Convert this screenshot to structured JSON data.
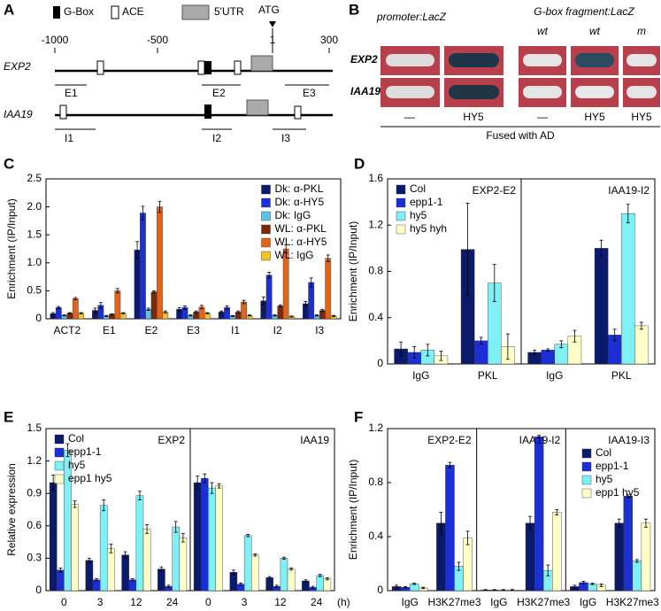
{
  "panel_labels": [
    "A",
    "B",
    "C",
    "D",
    "E",
    "F"
  ],
  "panel_a": {
    "legend": [
      "G-Box",
      "ACE",
      "5'UTR",
      "ATG"
    ],
    "scale": [
      "-1000",
      "-500",
      "1",
      "300"
    ],
    "genes": [
      {
        "name": "EXP2",
        "fragments": [
          "E1",
          "E2",
          "E3"
        ]
      },
      {
        "name": "IAA19",
        "fragments": [
          "I1",
          "I2",
          "I3"
        ]
      }
    ]
  },
  "panel_b": {
    "groups": [
      "promoter:LacZ",
      "G-box fragment:LacZ"
    ],
    "columns": [
      "wt",
      "wt",
      "m"
    ],
    "rows": [
      "EXP2",
      "IAA19"
    ],
    "effectors": [
      "—",
      "HY5",
      "—",
      "HY5",
      "HY5"
    ],
    "footer": "Fused with AD"
  },
  "chart_data": [
    {
      "type": "bar",
      "y_label": "Enrichment (IP/Input)",
      "legend": "upper right",
      "categories": [
        "ACT2",
        "E1",
        "E2",
        "E3",
        "I1",
        "I2",
        "I3"
      ],
      "ylim": [
        0,
        2.5
      ],
      "yticks": [
        0,
        0.5,
        {
          "value": 1,
          "label": "1.0"
        },
        1.5,
        {
          "value": 2,
          "label": "2.0"
        },
        2.5
      ],
      "series": [
        {
          "name": "Dk: α-PKL",
          "color": "#0b1a6b",
          "values": [
            0.09,
            0.15,
            1.23,
            0.17,
            0.12,
            0.32,
            0.27
          ],
          "errors": [
            0.02,
            0.04,
            0.15,
            0.03,
            0.02,
            0.07,
            0.04
          ]
        },
        {
          "name": "Dk: α-HY5",
          "color": "#1c2fd6",
          "values": [
            0.2,
            0.24,
            1.89,
            0.2,
            0.2,
            0.78,
            0.65
          ],
          "errors": [
            0.02,
            0.05,
            0.12,
            0.03,
            0.03,
            0.05,
            0.08
          ]
        },
        {
          "name": "Dk: IgG",
          "color": "#5cc0e8",
          "values": [
            0.06,
            0.05,
            0.17,
            0.06,
            0.05,
            0.06,
            0.06
          ],
          "errors": [
            0.01,
            0.01,
            0.02,
            0.01,
            0.01,
            0.01,
            0.01
          ]
        },
        {
          "name": "WL: α-PKL",
          "color": "#7a2a0c",
          "values": [
            0.1,
            0.08,
            0.48,
            0.12,
            0.12,
            0.23,
            0.15
          ],
          "errors": [
            0.01,
            0.01,
            0.02,
            0.02,
            0.02,
            0.02,
            0.02
          ]
        },
        {
          "name": "WL: α-HY5",
          "color": "#e0651a",
          "values": [
            0.36,
            0.5,
            2.0,
            0.21,
            0.3,
            1.25,
            1.08
          ],
          "errors": [
            0.02,
            0.04,
            0.1,
            0.03,
            0.03,
            0.07,
            0.06
          ]
        },
        {
          "name": "WL: IgG",
          "color": "#f2c22e",
          "values": [
            0.1,
            0.1,
            0.12,
            0.1,
            0.06,
            0.04,
            0.05
          ],
          "errors": [
            0.01,
            0.01,
            0.02,
            0.01,
            0.01,
            0.01,
            0.01
          ]
        }
      ]
    },
    {
      "type": "bar",
      "y_label": "Enrichment (IP/Input)",
      "legend": "upper left",
      "categories": [
        "IgG",
        "PKL",
        "IgG",
        "PKL"
      ],
      "group_labels": [
        "EXP2-E2",
        "IAA19-I2"
      ],
      "ylim": [
        0,
        1.6
      ],
      "yticks": [
        0,
        0.4,
        0.8,
        1.2,
        1.6
      ],
      "series": [
        {
          "name": "Col",
          "color": "#0b1a6b",
          "values": [
            0.13,
            0.99,
            0.1,
            1.0
          ],
          "errors": [
            0.06,
            0.4,
            0.02,
            0.07
          ]
        },
        {
          "name": "epp1-1",
          "color": "#1c2fd6",
          "values": [
            0.1,
            0.2,
            0.12,
            0.25
          ],
          "errors": [
            0.05,
            0.03,
            0.01,
            0.05
          ]
        },
        {
          "name": "hy5",
          "color": "#7ff0f5",
          "values": [
            0.12,
            0.7,
            0.17,
            1.3
          ],
          "errors": [
            0.05,
            0.16,
            0.03,
            0.08
          ]
        },
        {
          "name": "hy5 hyh",
          "color": "#ffffc8",
          "values": [
            0.07,
            0.15,
            0.24,
            0.33
          ],
          "errors": [
            0.04,
            0.11,
            0.05,
            0.03
          ]
        }
      ]
    },
    {
      "type": "bar",
      "y_label": "Relative expression",
      "x_label": "(h)",
      "legend": "upper left",
      "categories": [
        "0",
        "3",
        "12",
        "24",
        "0",
        "3",
        "12",
        "24"
      ],
      "group_labels": [
        "EXP2",
        "IAA19"
      ],
      "ylim": [
        0,
        1.5
      ],
      "yticks": [
        0,
        0.3,
        0.6,
        0.9,
        1.2,
        1.5
      ],
      "series": [
        {
          "name": "Col",
          "color": "#0b1a6b",
          "values": [
            1.0,
            0.28,
            0.33,
            0.2,
            1.0,
            0.17,
            0.12,
            0.09
          ],
          "errors": [
            0.07,
            0.02,
            0.03,
            0.02,
            0.06,
            0.02,
            0.01,
            0.01
          ]
        },
        {
          "name": "epp1-1",
          "color": "#1c2fd6",
          "values": [
            0.19,
            0.1,
            0.1,
            0.04,
            1.04,
            0.06,
            0.04,
            0.03
          ],
          "errors": [
            0.02,
            0.01,
            0.01,
            0.01,
            0.04,
            0.01,
            0.01,
            0.01
          ]
        },
        {
          "name": "hy5",
          "color": "#7ff0f5",
          "values": [
            1.3,
            0.79,
            0.88,
            0.59,
            0.95,
            0.51,
            0.3,
            0.14
          ],
          "errors": [
            0.06,
            0.05,
            0.04,
            0.05,
            0.05,
            0.01,
            0.01,
            0.01
          ]
        },
        {
          "name": "epp1 hy5",
          "color": "#ffffc8",
          "values": [
            0.8,
            0.39,
            0.57,
            0.49,
            0.97,
            0.33,
            0.2,
            0.11
          ],
          "errors": [
            0.03,
            0.04,
            0.04,
            0.04,
            0.02,
            0.01,
            0.01,
            0.01
          ]
        }
      ]
    },
    {
      "type": "bar",
      "y_label": "Enrichment (IP/Input)",
      "legend": "upper right",
      "categories": [
        "IgG",
        "H3K27me3",
        "IgG",
        "H3K27me3",
        "IgG",
        "H3K27me3"
      ],
      "group_labels": [
        "EXP2-E2",
        "IAA19-I2",
        "IAA19-I3"
      ],
      "ylim": [
        0,
        1.2
      ],
      "yticks": [
        0,
        0.4,
        0.8,
        1.2
      ],
      "series": [
        {
          "name": "Col",
          "color": "#0b1a6b",
          "values": [
            0.03,
            0.5,
            0.005,
            0.5,
            0.03,
            0.5
          ],
          "errors": [
            0.01,
            0.08,
            0.003,
            0.05,
            0.01,
            0.03
          ]
        },
        {
          "name": "epp1-1",
          "color": "#1c2fd6",
          "values": [
            0.025,
            0.93,
            0.005,
            1.14,
            0.06,
            0.7
          ],
          "errors": [
            0.005,
            0.02,
            0.003,
            0.01,
            0.01,
            0.01
          ]
        },
        {
          "name": "hy5",
          "color": "#7ff0f5",
          "values": [
            0.05,
            0.18,
            0.005,
            0.15,
            0.05,
            0.22
          ],
          "errors": [
            0.005,
            0.03,
            0.003,
            0.04,
            0.005,
            0.01
          ]
        },
        {
          "name": "epp1 hy5",
          "color": "#ffffc8",
          "values": [
            0.02,
            0.39,
            0.005,
            0.58,
            0.04,
            0.5
          ],
          "errors": [
            0.005,
            0.05,
            0.003,
            0.02,
            0.01,
            0.03
          ]
        }
      ]
    }
  ]
}
